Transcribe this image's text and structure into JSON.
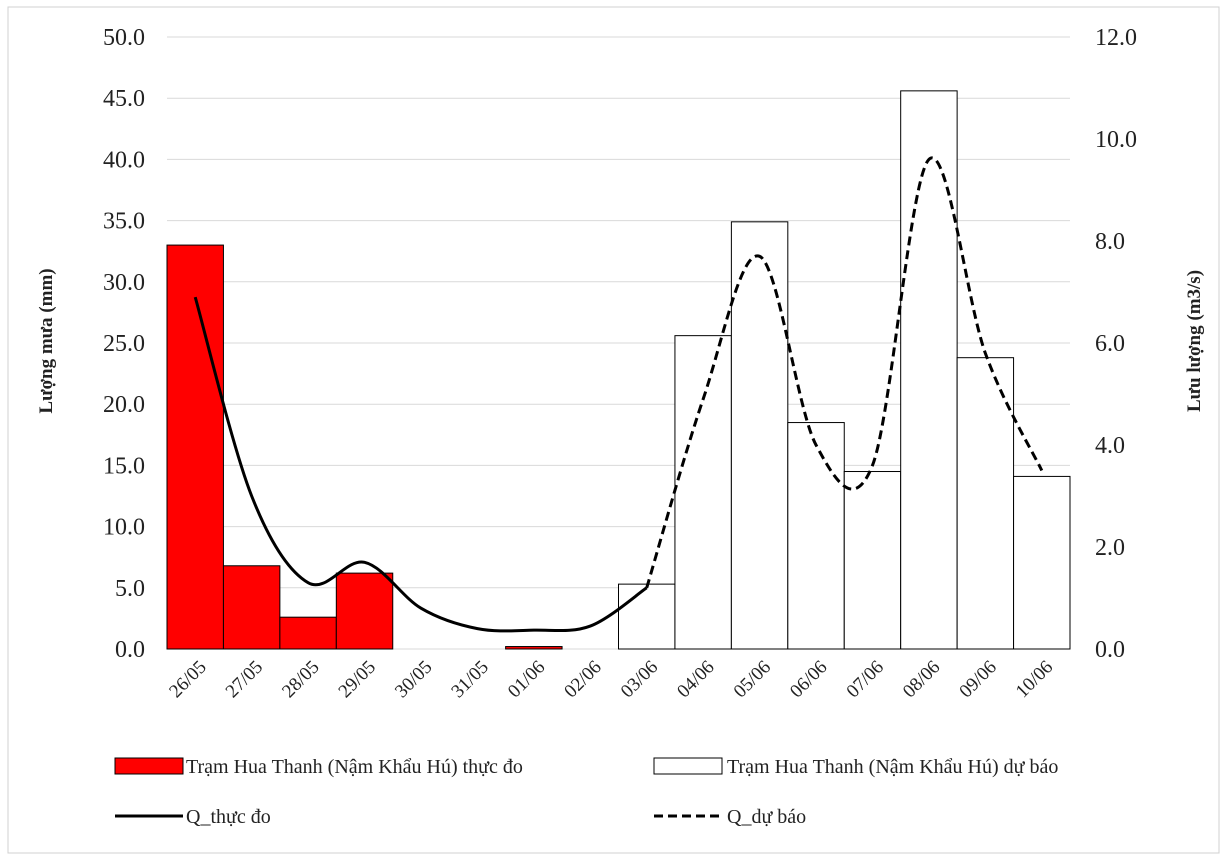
{
  "chart_data": {
    "type": "bar",
    "categories": [
      "26/05",
      "27/05",
      "28/05",
      "29/05",
      "30/05",
      "31/05",
      "01/06",
      "02/06",
      "03/06",
      "04/06",
      "05/06",
      "06/06",
      "07/06",
      "08/06",
      "09/06",
      "10/06"
    ],
    "bar_series": [
      {
        "name": "Trạm Hua Thanh (Nậm Khẩu Hú) thực đo",
        "color": "#ff0000",
        "values": [
          33.0,
          6.8,
          2.6,
          6.2,
          0,
          0,
          0.2,
          0,
          null,
          null,
          null,
          null,
          null,
          null,
          null,
          null
        ]
      },
      {
        "name": "Trạm Hua Thanh (Nậm Khẩu Hú) dự báo",
        "color": "#ffffff",
        "values": [
          null,
          null,
          null,
          null,
          null,
          null,
          null,
          null,
          5.3,
          25.6,
          34.9,
          18.5,
          14.5,
          45.6,
          23.8,
          14.1
        ]
      }
    ],
    "line_series": [
      {
        "name": "Q_thực đo",
        "style": "solid",
        "color": "#000000",
        "values": [
          6.9,
          3.0,
          1.3,
          1.7,
          0.8,
          0.4,
          0.37,
          0.45,
          1.2,
          null,
          null,
          null,
          null,
          null,
          null,
          null
        ]
      },
      {
        "name": "Q_dự báo",
        "style": "dashed",
        "color": "#000000",
        "values": [
          null,
          null,
          null,
          null,
          null,
          null,
          null,
          null,
          1.2,
          4.9,
          7.7,
          4.0,
          3.6,
          9.6,
          5.8,
          3.5
        ]
      }
    ],
    "ylabel": "Lượng mưa (mm)",
    "y2label": "Lưu lượng (m3/s)",
    "ylim": [
      0,
      50
    ],
    "y2lim": [
      0,
      12
    ],
    "yticks": [
      "0.0",
      "5.0",
      "10.0",
      "15.0",
      "20.0",
      "25.0",
      "30.0",
      "35.0",
      "40.0",
      "45.0",
      "50.0"
    ],
    "y2ticks": [
      "0.0",
      "2.0",
      "4.0",
      "6.0",
      "8.0",
      "10.0",
      "12.0"
    ],
    "grid": true,
    "legend_position": "bottom"
  }
}
